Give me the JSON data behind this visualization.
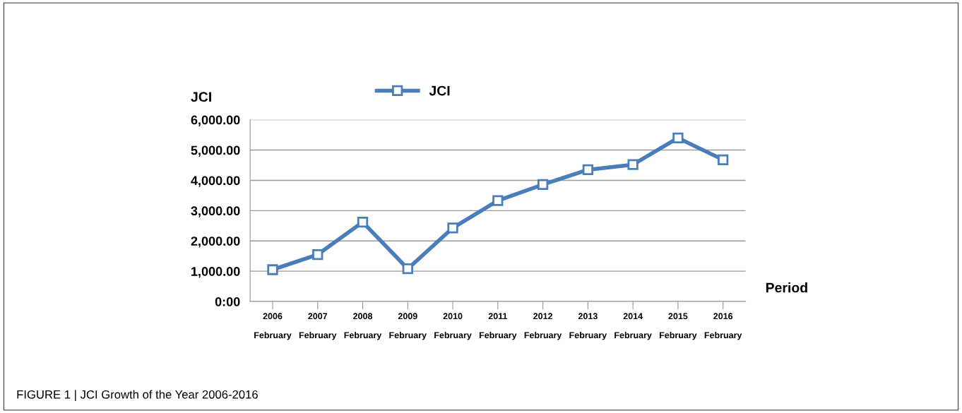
{
  "chart_data": {
    "type": "line",
    "categories": [
      "2006\n\nFebruary",
      "2007\n\nFebruary",
      "2008\n\nFebruary",
      "2009\n\nFebruary",
      "2010\n\nFebruary",
      "2011\n\nFebruary",
      "2012\n\nFebruary",
      "2013\n\nFebruary",
      "2014\n\nFebruary",
      "2015\n\nFebruary",
      "2016\n\nFebruary"
    ],
    "series": [
      {
        "name": "JCI",
        "color": "#4a7ebb",
        "values": [
          1050,
          1550,
          2620,
          1080,
          2430,
          3330,
          3860,
          4350,
          4520,
          5400,
          4680
        ]
      }
    ],
    "ylabel": "JCI",
    "xlabel": "Period",
    "ylim": [
      0,
      6000
    ],
    "yticks": [
      {
        "value": 0,
        "label": "0:00"
      },
      {
        "value": 1000,
        "label": "1,000.00"
      },
      {
        "value": 2000,
        "label": "2,000.00"
      },
      {
        "value": 3000,
        "label": "3,000.00"
      },
      {
        "value": 4000,
        "label": "4,000.00"
      },
      {
        "value": 5000,
        "label": "5,000.00"
      },
      {
        "value": 6000,
        "label": "6,000.00"
      }
    ],
    "grid": "y",
    "legend": "top",
    "marker": "square",
    "line_style": "solid",
    "annotations": [
      "FIGURE 1 | JCI Growth of the Year 2006-2016"
    ]
  }
}
